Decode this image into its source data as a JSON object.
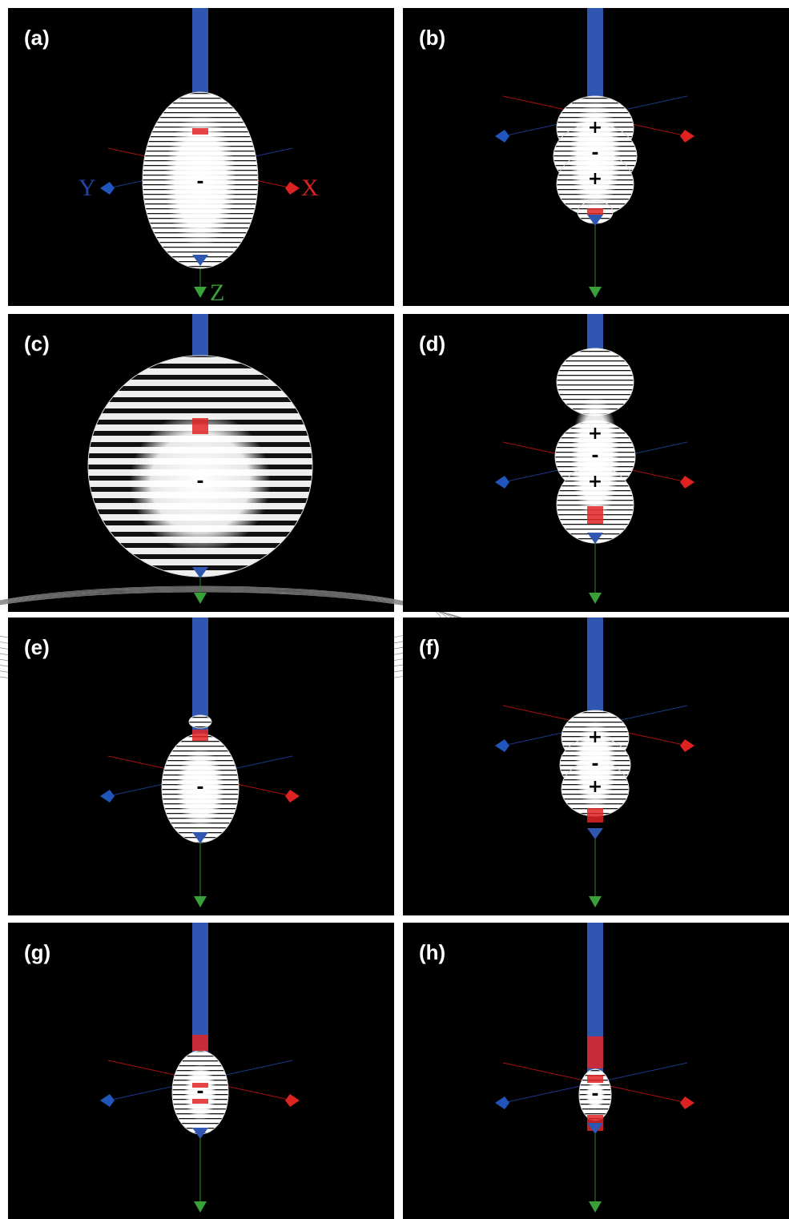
{
  "panels": [
    {
      "label": "(a)",
      "signs": [
        "-"
      ],
      "axes": {
        "y": "Y",
        "x": "X",
        "z": "Z"
      }
    },
    {
      "label": "(b)",
      "signs": [
        "+",
        "-",
        "+"
      ]
    },
    {
      "label": "(c)",
      "signs": [
        "-"
      ]
    },
    {
      "label": "(d)",
      "signs": [
        "+",
        "-",
        "+"
      ]
    },
    {
      "label": "(e)",
      "signs": [
        "-"
      ]
    },
    {
      "label": "(f)",
      "signs": [
        "+",
        "-",
        "+"
      ]
    },
    {
      "label": "(g)",
      "signs": [
        "-"
      ]
    },
    {
      "label": "(h)",
      "signs": [
        "-"
      ]
    }
  ]
}
